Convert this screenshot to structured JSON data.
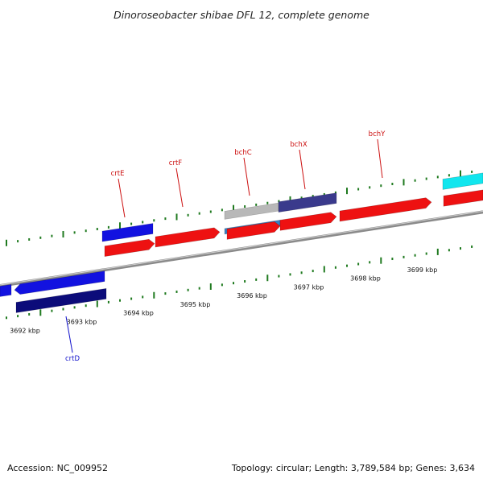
{
  "title": "Dinoroseobacter shibae DFL 12, complete genome",
  "accession": "Accession: NC_009952",
  "topology": "Topology: circular; Length: 3,789,584 bp; Genes: 3,634",
  "colors": {
    "backbone": "#8a8a8a",
    "tick": "#1f7a1f",
    "label_red": "#cc1111",
    "label_blue": "#1111cc",
    "gene_red": "#ee1111",
    "gene_blue": "#1212e0",
    "gene_navy": "#0c0c7a",
    "gene_slate": "#3a3a8c",
    "gene_cyan": "#11e6ee",
    "gene_silver": "#b8b8b8",
    "gene_steel": "#3a7fc0"
  },
  "scale": {
    "tick_labels": [
      "3692 kbp",
      "3693 kbp",
      "3694 kbp",
      "3695 kbp",
      "3696 kbp",
      "3697 kbp",
      "3698 kbp",
      "3699 kbp"
    ]
  },
  "gene_labels": [
    {
      "name": "crtE",
      "color": "#cc1111"
    },
    {
      "name": "crtF",
      "color": "#cc1111"
    },
    {
      "name": "bchC",
      "color": "#cc1111"
    },
    {
      "name": "bchX",
      "color": "#cc1111"
    },
    {
      "name": "bchY",
      "color": "#cc1111"
    },
    {
      "name": "crtD",
      "color": "#1111cc"
    }
  ]
}
